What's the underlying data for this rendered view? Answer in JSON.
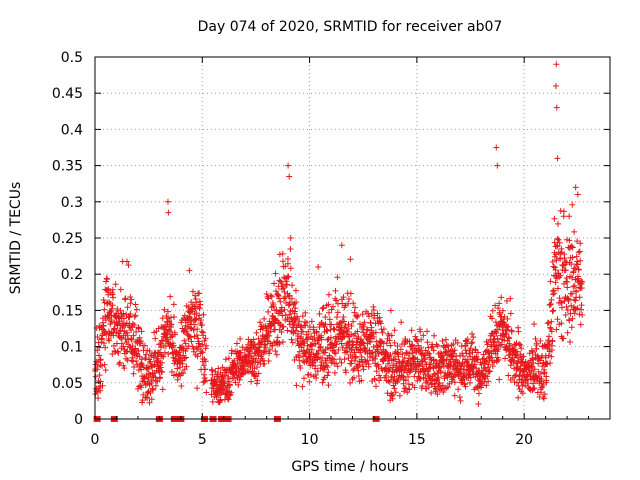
{
  "chart_data": {
    "type": "scatter",
    "title": "Day 074 of 2020, SRMTID for receiver ab07",
    "xlabel": "GPS time / hours",
    "ylabel": "SRMTID / TECUs",
    "xlim": [
      0,
      24
    ],
    "ylim": [
      0,
      0.5
    ],
    "x_ticks": [
      0,
      5,
      10,
      15,
      20
    ],
    "x_tick_labels": [
      "0",
      "5",
      "10",
      "15",
      "20"
    ],
    "y_ticks": [
      0,
      0.05,
      0.1,
      0.15,
      0.2,
      0.25,
      0.3,
      0.35,
      0.4,
      0.45,
      0.5
    ],
    "y_tick_labels": [
      "0",
      "0.05",
      "0.1",
      "0.15",
      "0.2",
      "0.25",
      "0.3",
      "0.35",
      "0.4",
      "0.45",
      "0.5"
    ],
    "grid": true,
    "marker": "+",
    "series_color": "#e41a1c",
    "series": [
      {
        "name": "SRMTID",
        "envelope_points": [
          [
            0.0,
            0.06,
            0.04
          ],
          [
            0.3,
            0.11,
            0.05
          ],
          [
            0.6,
            0.15,
            0.05
          ],
          [
            1.0,
            0.12,
            0.04
          ],
          [
            1.5,
            0.13,
            0.05
          ],
          [
            2.0,
            0.09,
            0.04
          ],
          [
            2.5,
            0.06,
            0.03
          ],
          [
            3.0,
            0.08,
            0.03
          ],
          [
            3.4,
            0.12,
            0.04
          ],
          [
            3.9,
            0.07,
            0.02
          ],
          [
            4.5,
            0.14,
            0.04
          ],
          [
            5.0,
            0.11,
            0.04
          ],
          [
            5.3,
            0.05,
            0.02
          ],
          [
            6.0,
            0.04,
            0.02
          ],
          [
            6.5,
            0.07,
            0.02
          ],
          [
            7.0,
            0.08,
            0.02
          ],
          [
            7.5,
            0.09,
            0.03
          ],
          [
            8.0,
            0.11,
            0.03
          ],
          [
            8.5,
            0.15,
            0.04
          ],
          [
            9.0,
            0.17,
            0.05
          ],
          [
            9.5,
            0.11,
            0.04
          ],
          [
            10.0,
            0.09,
            0.03
          ],
          [
            10.5,
            0.1,
            0.04
          ],
          [
            11.0,
            0.1,
            0.04
          ],
          [
            11.5,
            0.12,
            0.04
          ],
          [
            12.0,
            0.1,
            0.04
          ],
          [
            12.5,
            0.1,
            0.03
          ],
          [
            13.0,
            0.11,
            0.04
          ],
          [
            13.5,
            0.08,
            0.03
          ],
          [
            14.0,
            0.07,
            0.03
          ],
          [
            14.5,
            0.07,
            0.03
          ],
          [
            15.0,
            0.08,
            0.03
          ],
          [
            15.5,
            0.07,
            0.03
          ],
          [
            16.0,
            0.07,
            0.03
          ],
          [
            16.5,
            0.08,
            0.03
          ],
          [
            17.0,
            0.07,
            0.03
          ],
          [
            17.5,
            0.08,
            0.03
          ],
          [
            18.0,
            0.06,
            0.02
          ],
          [
            18.5,
            0.1,
            0.03
          ],
          [
            19.0,
            0.12,
            0.04
          ],
          [
            19.5,
            0.08,
            0.03
          ],
          [
            20.0,
            0.06,
            0.02
          ],
          [
            20.5,
            0.07,
            0.03
          ],
          [
            21.0,
            0.07,
            0.03
          ],
          [
            21.5,
            0.2,
            0.07
          ],
          [
            22.0,
            0.18,
            0.06
          ],
          [
            22.5,
            0.2,
            0.06
          ],
          [
            22.7,
            0.16,
            0.05
          ]
        ],
        "peaks": [
          [
            21.5,
            0.49
          ],
          [
            21.48,
            0.46
          ],
          [
            21.52,
            0.43
          ],
          [
            21.55,
            0.36
          ],
          [
            18.7,
            0.375
          ],
          [
            18.75,
            0.35
          ],
          [
            9.0,
            0.35
          ],
          [
            9.05,
            0.335
          ],
          [
            3.4,
            0.3
          ],
          [
            3.42,
            0.285
          ],
          [
            22.4,
            0.32
          ],
          [
            22.5,
            0.31
          ],
          [
            11.5,
            0.24
          ],
          [
            10.4,
            0.21
          ],
          [
            4.4,
            0.205
          ]
        ],
        "zero_marks": [
          0.1,
          0.9,
          3.0,
          3.7,
          3.8,
          3.9,
          4.0,
          5.1,
          5.5,
          5.9,
          6.1,
          6.2,
          8.5,
          13.1
        ]
      }
    ]
  }
}
